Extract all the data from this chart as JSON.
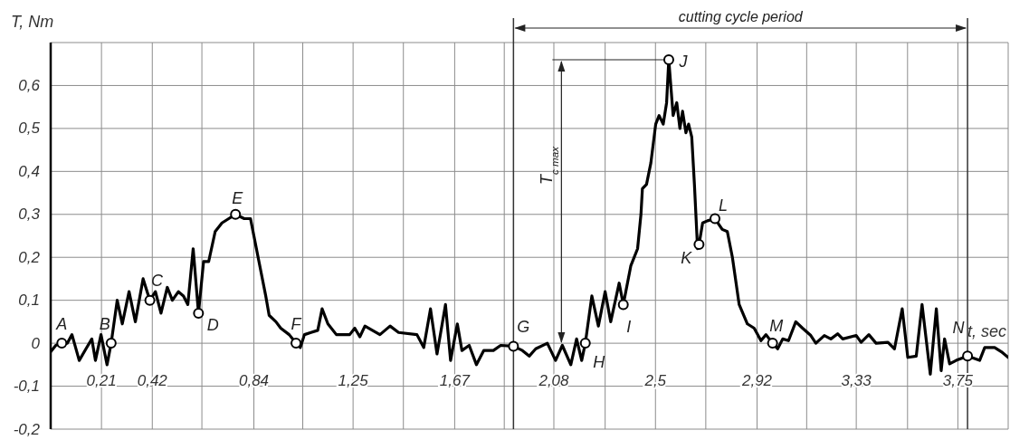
{
  "chart_data": {
    "type": "line",
    "xlabel": "t, sec",
    "ylabel": "T, Nm",
    "xlim": [
      0,
      3.958
    ],
    "ylim": [
      -0.2,
      0.7
    ],
    "xticks": [
      {
        "value": 0.21,
        "label": "0,21"
      },
      {
        "value": 0.42,
        "label": "0,42"
      },
      {
        "value": 0.625,
        "label": null
      },
      {
        "value": 0.84,
        "label": "0,84"
      },
      {
        "value": 1.042,
        "label": null
      },
      {
        "value": 1.25,
        "label": "1,25"
      },
      {
        "value": 1.458,
        "label": null
      },
      {
        "value": 1.67,
        "label": "1,67"
      },
      {
        "value": 1.875,
        "label": null
      },
      {
        "value": 2.08,
        "label": "2,08"
      },
      {
        "value": 2.292,
        "label": null
      },
      {
        "value": 2.5,
        "label": "2,5"
      },
      {
        "value": 2.708,
        "label": null
      },
      {
        "value": 2.92,
        "label": "2,92"
      },
      {
        "value": 3.125,
        "label": null
      },
      {
        "value": 3.33,
        "label": "3,33"
      },
      {
        "value": 3.542,
        "label": null
      },
      {
        "value": 3.75,
        "label": "3,75"
      },
      {
        "value": 3.958,
        "label": null
      }
    ],
    "yticks": [
      {
        "value": -0.2,
        "label": "-0,2"
      },
      {
        "value": -0.1,
        "label": "-0,1"
      },
      {
        "value": 0,
        "label": "0"
      },
      {
        "value": 0.1,
        "label": "0,1"
      },
      {
        "value": 0.2,
        "label": "0,2"
      },
      {
        "value": 0.3,
        "label": "0,3"
      },
      {
        "value": 0.4,
        "label": "0,4"
      },
      {
        "value": 0.5,
        "label": "0,5"
      },
      {
        "value": 0.6,
        "label": "0,6"
      },
      {
        "value": 0.7,
        "label": null
      }
    ],
    "grid": true,
    "ref_lines": [
      {
        "axis": "x",
        "value": 1.913,
        "color": "#333333"
      },
      {
        "axis": "x",
        "value": 3.79,
        "color": "#333333"
      }
    ],
    "series": [
      {
        "color": "#000000",
        "marker": "none",
        "line_style": "solid",
        "x": [
          0,
          0.021,
          0.046,
          0.069,
          0.088,
          0.118,
          0.146,
          0.17,
          0.185,
          0.208,
          0.233,
          0.25,
          0.275,
          0.296,
          0.324,
          0.35,
          0.382,
          0.41,
          0.433,
          0.456,
          0.482,
          0.503,
          0.528,
          0.549,
          0.567,
          0.589,
          0.611,
          0.632,
          0.653,
          0.68,
          0.708,
          0.736,
          0.764,
          0.8,
          0.826,
          0.861,
          0.889,
          0.903,
          0.931,
          0.951,
          0.986,
          1.014,
          1.032,
          1.049,
          1.076,
          1.104,
          1.122,
          1.146,
          1.181,
          1.236,
          1.257,
          1.278,
          1.299,
          1.361,
          1.403,
          1.438,
          1.514,
          1.542,
          1.57,
          1.597,
          1.632,
          1.653,
          1.681,
          1.7,
          1.73,
          1.76,
          1.79,
          1.83,
          1.86,
          1.913,
          1.95,
          1.978,
          2.005,
          2.053,
          2.087,
          2.115,
          2.15,
          2.174,
          2.195,
          2.21,
          2.237,
          2.264,
          2.292,
          2.315,
          2.35,
          2.367,
          2.398,
          2.426,
          2.44,
          2.446,
          2.463,
          2.481,
          2.501,
          2.515,
          2.532,
          2.546,
          2.555,
          2.573,
          2.588,
          2.601,
          2.612,
          2.626,
          2.637,
          2.65,
          2.661,
          2.674,
          2.68,
          2.695,
          2.715,
          2.746,
          2.776,
          2.797,
          2.818,
          2.846,
          2.88,
          2.908,
          2.936,
          2.957,
          2.984,
          3.005,
          3.026,
          3.05,
          3.08,
          3.108,
          3.142,
          3.163,
          3.198,
          3.225,
          3.253,
          3.274,
          3.33,
          3.35,
          3.382,
          3.412,
          3.461,
          3.488,
          3.52,
          3.543,
          3.578,
          3.602,
          3.636,
          3.661,
          3.681,
          3.695,
          3.716,
          3.743,
          3.79,
          3.84,
          3.861,
          3.902,
          3.93,
          3.958
        ],
        "values": [
          -0.02,
          -0.005,
          0,
          0,
          0.02,
          -0.04,
          -0.013,
          0.01,
          -0.04,
          0.02,
          -0.05,
          0,
          0.1,
          0.045,
          0.12,
          0.05,
          0.15,
          0.1,
          0.12,
          0.07,
          0.13,
          0.1,
          0.12,
          0.11,
          0.09,
          0.22,
          0.07,
          0.19,
          0.19,
          0.26,
          0.28,
          0.29,
          0.3,
          0.29,
          0.29,
          0.19,
          0.11,
          0.065,
          0.05,
          0.035,
          0.02,
          0,
          -0.01,
          0.02,
          0.025,
          0.03,
          0.08,
          0.045,
          0.02,
          0.02,
          0.035,
          0.015,
          0.04,
          0.02,
          0.04,
          0.025,
          0.02,
          -0.01,
          0.08,
          -0.025,
          0.09,
          -0.04,
          0.045,
          -0.017,
          -0.005,
          -0.05,
          -0.017,
          -0.017,
          -0.005,
          -0.007,
          -0.017,
          -0.03,
          -0.013,
          0,
          -0.04,
          -0.005,
          -0.05,
          0.01,
          -0.04,
          0,
          0.11,
          0.04,
          0.12,
          0.05,
          0.14,
          0.09,
          0.18,
          0.22,
          0.3,
          0.36,
          0.37,
          0.42,
          0.51,
          0.53,
          0.51,
          0.56,
          0.66,
          0.53,
          0.56,
          0.5,
          0.54,
          0.49,
          0.51,
          0.48,
          0.37,
          0.22,
          0.23,
          0.28,
          0.285,
          0.29,
          0.265,
          0.26,
          0.2,
          0.09,
          0.045,
          0.035,
          0.006,
          0.02,
          0,
          -0.013,
          0.01,
          0.006,
          0.05,
          0.035,
          0.018,
          0,
          0.018,
          0.01,
          0.022,
          0.01,
          0.018,
          0.002,
          0.02,
          0,
          0.002,
          -0.013,
          0.08,
          -0.033,
          -0.03,
          0.09,
          -0.072,
          0.08,
          -0.064,
          0.01,
          -0.048,
          -0.04,
          -0.03,
          -0.04,
          -0.01,
          -0.01,
          -0.02,
          -0.033
        ]
      },
      {
        "type": "scatter",
        "color": "#000000",
        "marker": "circle",
        "x": [
          0.046,
          0.25,
          0.41,
          0.611,
          0.764,
          1.014,
          1.913,
          2.21,
          2.367,
          2.555,
          2.68,
          2.746,
          2.984,
          3.79
        ],
        "values": [
          0,
          0,
          0.1,
          0.07,
          0.3,
          0,
          -0.007,
          0,
          0.09,
          0.66,
          0.23,
          0.29,
          0,
          -0.03
        ]
      }
    ],
    "annotations": [
      {
        "text": "A",
        "x": 0.046,
        "y": 0
      },
      {
        "text": "B",
        "x": 0.25,
        "y": 0
      },
      {
        "text": "C",
        "x": 0.41,
        "y": 0.1
      },
      {
        "text": "D",
        "x": 0.611,
        "y": 0.07
      },
      {
        "text": "E",
        "x": 0.764,
        "y": 0.3
      },
      {
        "text": "F",
        "x": 1.014,
        "y": 0
      },
      {
        "text": "G",
        "x": 1.913,
        "y": -0.007
      },
      {
        "text": "H",
        "x": 2.21,
        "y": 0
      },
      {
        "text": "I",
        "x": 2.367,
        "y": 0.09
      },
      {
        "text": "J",
        "x": 2.555,
        "y": 0.66
      },
      {
        "text": "K",
        "x": 2.68,
        "y": 0.23
      },
      {
        "text": "L",
        "x": 2.746,
        "y": 0.29
      },
      {
        "text": "M",
        "x": 2.984,
        "y": 0
      },
      {
        "text": "N",
        "x": 3.79,
        "y": -0.03
      },
      "cutting cycle period",
      "T$_{c max}$"
    ]
  }
}
